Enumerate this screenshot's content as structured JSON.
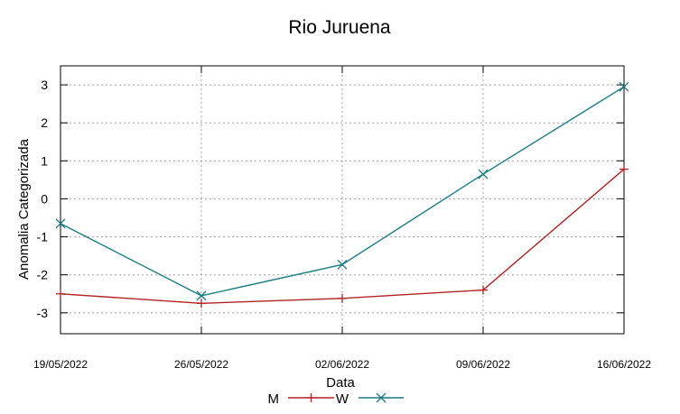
{
  "chart_data": {
    "type": "line",
    "title": "Rio Juruena",
    "xlabel": "Data",
    "ylabel": "Anomalia Categorizada",
    "x": [
      "19/05/2022",
      "26/05/2022",
      "02/06/2022",
      "09/06/2022",
      "16/06/2022"
    ],
    "ylim": [
      -3.55,
      3.5
    ],
    "yticks": [
      3,
      2,
      1,
      0,
      -1,
      -2,
      -3
    ],
    "ytick_labels": [
      "3",
      "2",
      "1",
      "0",
      "-1",
      "-2",
      "-3"
    ],
    "grid": true,
    "legend_position": "bottom",
    "series": [
      {
        "name": "M",
        "color": "#b22222",
        "marker": "plus",
        "values": [
          -2.5,
          -2.75,
          -2.62,
          -2.4,
          0.78
        ]
      },
      {
        "name": "W",
        "color": "#1a7a80",
        "marker": "cross",
        "values": [
          -0.65,
          -2.55,
          -1.73,
          0.65,
          2.95
        ]
      }
    ]
  }
}
